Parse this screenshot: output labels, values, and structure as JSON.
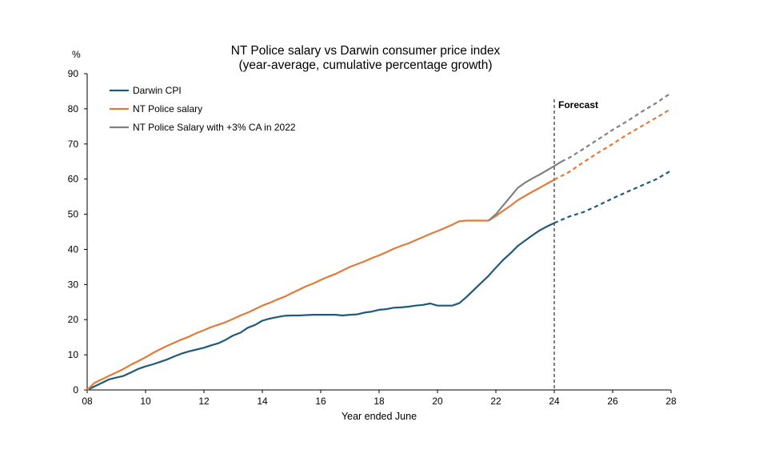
{
  "chart_data": {
    "type": "line",
    "title": "NT Police salary vs Darwin consumer price index",
    "subtitle": "(year-average, cumulative percentage growth)",
    "xlabel": "Year ended June",
    "ylabel": "%",
    "xlim": [
      8,
      28
    ],
    "ylim": [
      0,
      90
    ],
    "x_ticks": [
      8,
      10,
      12,
      14,
      16,
      18,
      20,
      22,
      24,
      26,
      28
    ],
    "x_tick_labels": [
      "08",
      "10",
      "12",
      "14",
      "16",
      "18",
      "20",
      "22",
      "24",
      "26",
      "28"
    ],
    "y_ticks": [
      0,
      10,
      20,
      30,
      40,
      50,
      60,
      70,
      80,
      90
    ],
    "y_tick_labels": [
      "0",
      "10",
      "20",
      "30",
      "40",
      "50",
      "60",
      "70",
      "80",
      "90"
    ],
    "grid": false,
    "legend_position": "top-left",
    "forecast_start": 24,
    "forecast_label": "Forecast",
    "series": [
      {
        "name": "Darwin CPI",
        "color": "#1f5a7a",
        "values": [
          [
            8,
            0
          ],
          [
            8.25,
            1
          ],
          [
            8.5,
            2
          ],
          [
            8.75,
            3
          ],
          [
            9,
            3.5
          ],
          [
            9.25,
            4
          ],
          [
            9.5,
            5
          ],
          [
            9.75,
            6
          ],
          [
            10,
            6.7
          ],
          [
            10.25,
            7.3
          ],
          [
            10.5,
            8
          ],
          [
            10.75,
            8.7
          ],
          [
            11,
            9.6
          ],
          [
            11.25,
            10.4
          ],
          [
            11.5,
            11
          ],
          [
            11.75,
            11.5
          ],
          [
            12,
            12
          ],
          [
            12.25,
            12.7
          ],
          [
            12.5,
            13.3
          ],
          [
            12.75,
            14.3
          ],
          [
            13,
            15.5
          ],
          [
            13.25,
            16.3
          ],
          [
            13.5,
            17.7
          ],
          [
            13.75,
            18.5
          ],
          [
            14,
            19.7
          ],
          [
            14.25,
            20.3
          ],
          [
            14.5,
            20.7
          ],
          [
            14.75,
            21.1
          ],
          [
            15,
            21.2
          ],
          [
            15.25,
            21.2
          ],
          [
            15.5,
            21.3
          ],
          [
            15.75,
            21.4
          ],
          [
            16,
            21.4
          ],
          [
            16.25,
            21.4
          ],
          [
            16.5,
            21.4
          ],
          [
            16.75,
            21.2
          ],
          [
            17,
            21.4
          ],
          [
            17.25,
            21.5
          ],
          [
            17.5,
            22
          ],
          [
            17.75,
            22.3
          ],
          [
            18,
            22.8
          ],
          [
            18.25,
            23
          ],
          [
            18.5,
            23.4
          ],
          [
            18.75,
            23.5
          ],
          [
            19,
            23.7
          ],
          [
            19.25,
            24
          ],
          [
            19.5,
            24.2
          ],
          [
            19.75,
            24.6
          ],
          [
            20,
            24
          ],
          [
            20.25,
            24
          ],
          [
            20.5,
            24
          ],
          [
            20.75,
            24.7
          ],
          [
            21,
            26.5
          ],
          [
            21.25,
            28.5
          ],
          [
            21.5,
            30.5
          ],
          [
            21.75,
            32.5
          ],
          [
            22,
            34.8
          ],
          [
            22.25,
            37
          ],
          [
            22.5,
            38.9
          ],
          [
            22.75,
            41
          ],
          [
            23,
            42.5
          ],
          [
            23.25,
            44
          ],
          [
            23.5,
            45.4
          ],
          [
            23.75,
            46.5
          ],
          [
            24,
            47.5
          ]
        ],
        "forecast_values": [
          [
            24,
            47.5
          ],
          [
            24.5,
            49.3
          ],
          [
            25,
            50.6
          ],
          [
            25.5,
            52.5
          ],
          [
            26,
            54.5
          ],
          [
            26.5,
            56.4
          ],
          [
            27,
            58.2
          ],
          [
            27.5,
            60
          ],
          [
            28,
            62.4
          ]
        ]
      },
      {
        "name": "NT Police salary",
        "color": "#e07b39",
        "values": [
          [
            8,
            0
          ],
          [
            8.25,
            2
          ],
          [
            8.5,
            3
          ],
          [
            8.75,
            4
          ],
          [
            9,
            5
          ],
          [
            9.25,
            6
          ],
          [
            9.5,
            7.2
          ],
          [
            9.75,
            8.2
          ],
          [
            10,
            9.3
          ],
          [
            10.25,
            10.5
          ],
          [
            10.5,
            11.6
          ],
          [
            10.75,
            12.6
          ],
          [
            11,
            13.5
          ],
          [
            11.25,
            14.4
          ],
          [
            11.5,
            15.2
          ],
          [
            11.75,
            16.2
          ],
          [
            12,
            17
          ],
          [
            12.25,
            17.9
          ],
          [
            12.5,
            18.6
          ],
          [
            12.75,
            19.3
          ],
          [
            13,
            20.2
          ],
          [
            13.25,
            21.2
          ],
          [
            13.5,
            22
          ],
          [
            13.75,
            23
          ],
          [
            14,
            24
          ],
          [
            14.25,
            24.8
          ],
          [
            14.5,
            25.7
          ],
          [
            14.75,
            26.5
          ],
          [
            15,
            27.5
          ],
          [
            15.25,
            28.5
          ],
          [
            15.5,
            29.5
          ],
          [
            15.75,
            30.3
          ],
          [
            16,
            31.3
          ],
          [
            16.25,
            32.2
          ],
          [
            16.5,
            33
          ],
          [
            16.75,
            34
          ],
          [
            17,
            35
          ],
          [
            17.25,
            35.8
          ],
          [
            17.5,
            36.6
          ],
          [
            17.75,
            37.5
          ],
          [
            18,
            38.3
          ],
          [
            18.25,
            39.2
          ],
          [
            18.5,
            40.2
          ],
          [
            18.75,
            41
          ],
          [
            19,
            41.7
          ],
          [
            19.25,
            42.6
          ],
          [
            19.5,
            43.5
          ],
          [
            19.75,
            44.4
          ],
          [
            20,
            45.2
          ],
          [
            20.25,
            46.1
          ],
          [
            20.5,
            47
          ],
          [
            20.75,
            48
          ],
          [
            21,
            48.2
          ],
          [
            21.5,
            48.2
          ],
          [
            21.75,
            48.2
          ],
          [
            22,
            49.5
          ],
          [
            22.25,
            51
          ],
          [
            22.5,
            52.4
          ],
          [
            22.75,
            54
          ],
          [
            23,
            55.2
          ],
          [
            23.25,
            56.4
          ],
          [
            23.5,
            57.5
          ],
          [
            23.75,
            58.7
          ],
          [
            24,
            59.8
          ]
        ],
        "forecast_values": [
          [
            24,
            59.8
          ],
          [
            24.5,
            62
          ],
          [
            25,
            64.8
          ],
          [
            25.5,
            67.5
          ],
          [
            26,
            70
          ],
          [
            26.5,
            72.7
          ],
          [
            27,
            75.1
          ],
          [
            27.5,
            77.5
          ],
          [
            28,
            80
          ]
        ]
      },
      {
        "name": "NT Police Salary with +3% CA in 2022",
        "color": "#808080",
        "values": [
          [
            21.75,
            48.2
          ],
          [
            22,
            50
          ],
          [
            22.25,
            52.5
          ],
          [
            22.5,
            55
          ],
          [
            22.75,
            57.5
          ],
          [
            23,
            59
          ],
          [
            23.25,
            60.2
          ],
          [
            23.5,
            61.3
          ],
          [
            23.75,
            62.5
          ],
          [
            24,
            63.7
          ],
          [
            24.25,
            65
          ]
        ],
        "forecast_values": [
          [
            24.25,
            65
          ],
          [
            24.5,
            66
          ],
          [
            25,
            68.6
          ],
          [
            25.5,
            71.3
          ],
          [
            26,
            74
          ],
          [
            26.5,
            76.5
          ],
          [
            27,
            79.2
          ],
          [
            27.5,
            81.7
          ],
          [
            28,
            84.5
          ]
        ]
      }
    ]
  }
}
